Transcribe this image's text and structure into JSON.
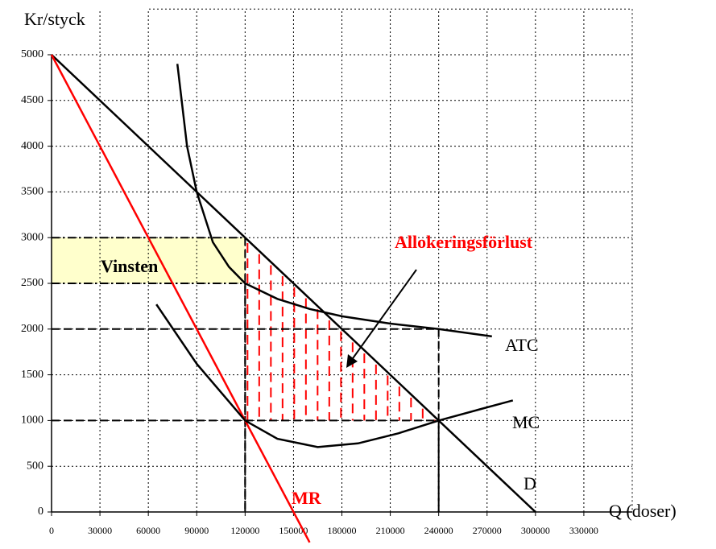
{
  "chart_data": {
    "type": "line",
    "ylabel": "Kr/styck",
    "xlabel": "Q (doser)",
    "xlim": [
      0,
      360000
    ],
    "ylim": [
      0,
      5500
    ],
    "xticks": [
      0,
      30000,
      60000,
      90000,
      120000,
      150000,
      180000,
      210000,
      240000,
      270000,
      300000,
      330000
    ],
    "yticks": [
      0,
      500,
      1000,
      1500,
      2000,
      2500,
      3000,
      3500,
      4000,
      4500,
      5000
    ],
    "grid": true,
    "series": [
      {
        "name": "D",
        "color": "#000000",
        "x": [
          0,
          300000
        ],
        "values": [
          5000,
          0
        ]
      },
      {
        "name": "MR",
        "color": "#ff0000",
        "x": [
          0,
          160000
        ],
        "values": [
          5000,
          -333
        ]
      },
      {
        "name": "ATC",
        "color": "#000000",
        "x": [
          78000,
          84000,
          90000,
          100000,
          110000,
          120000,
          140000,
          160000,
          180000,
          210000,
          240000,
          273000
        ],
        "values": [
          4900,
          4000,
          3500,
          2950,
          2680,
          2500,
          2330,
          2220,
          2140,
          2060,
          2000,
          1920
        ]
      },
      {
        "name": "MC",
        "color": "#000000",
        "x": [
          65000,
          90000,
          120000,
          140000,
          165000,
          190000,
          215000,
          240000,
          265000,
          286000
        ],
        "values": [
          2270,
          1620,
          1000,
          800,
          710,
          750,
          860,
          1000,
          1120,
          1220
        ]
      }
    ],
    "guides": [
      {
        "x": 120000,
        "y": 3000
      },
      {
        "x": 120000,
        "y": 2500
      },
      {
        "x": 240000,
        "y": 2000
      },
      {
        "x": 240000,
        "y": 1000
      }
    ],
    "region": {
      "label": "Vinsten",
      "x": [
        0,
        120000
      ],
      "y": [
        2500,
        3000
      ],
      "color": "#ffffcc"
    },
    "hatch": {
      "label": "Allokeringsförlust",
      "color": "#ff0000",
      "x": [
        120000,
        120000,
        240000
      ],
      "y": [
        3000,
        1000,
        1000
      ]
    }
  }
}
